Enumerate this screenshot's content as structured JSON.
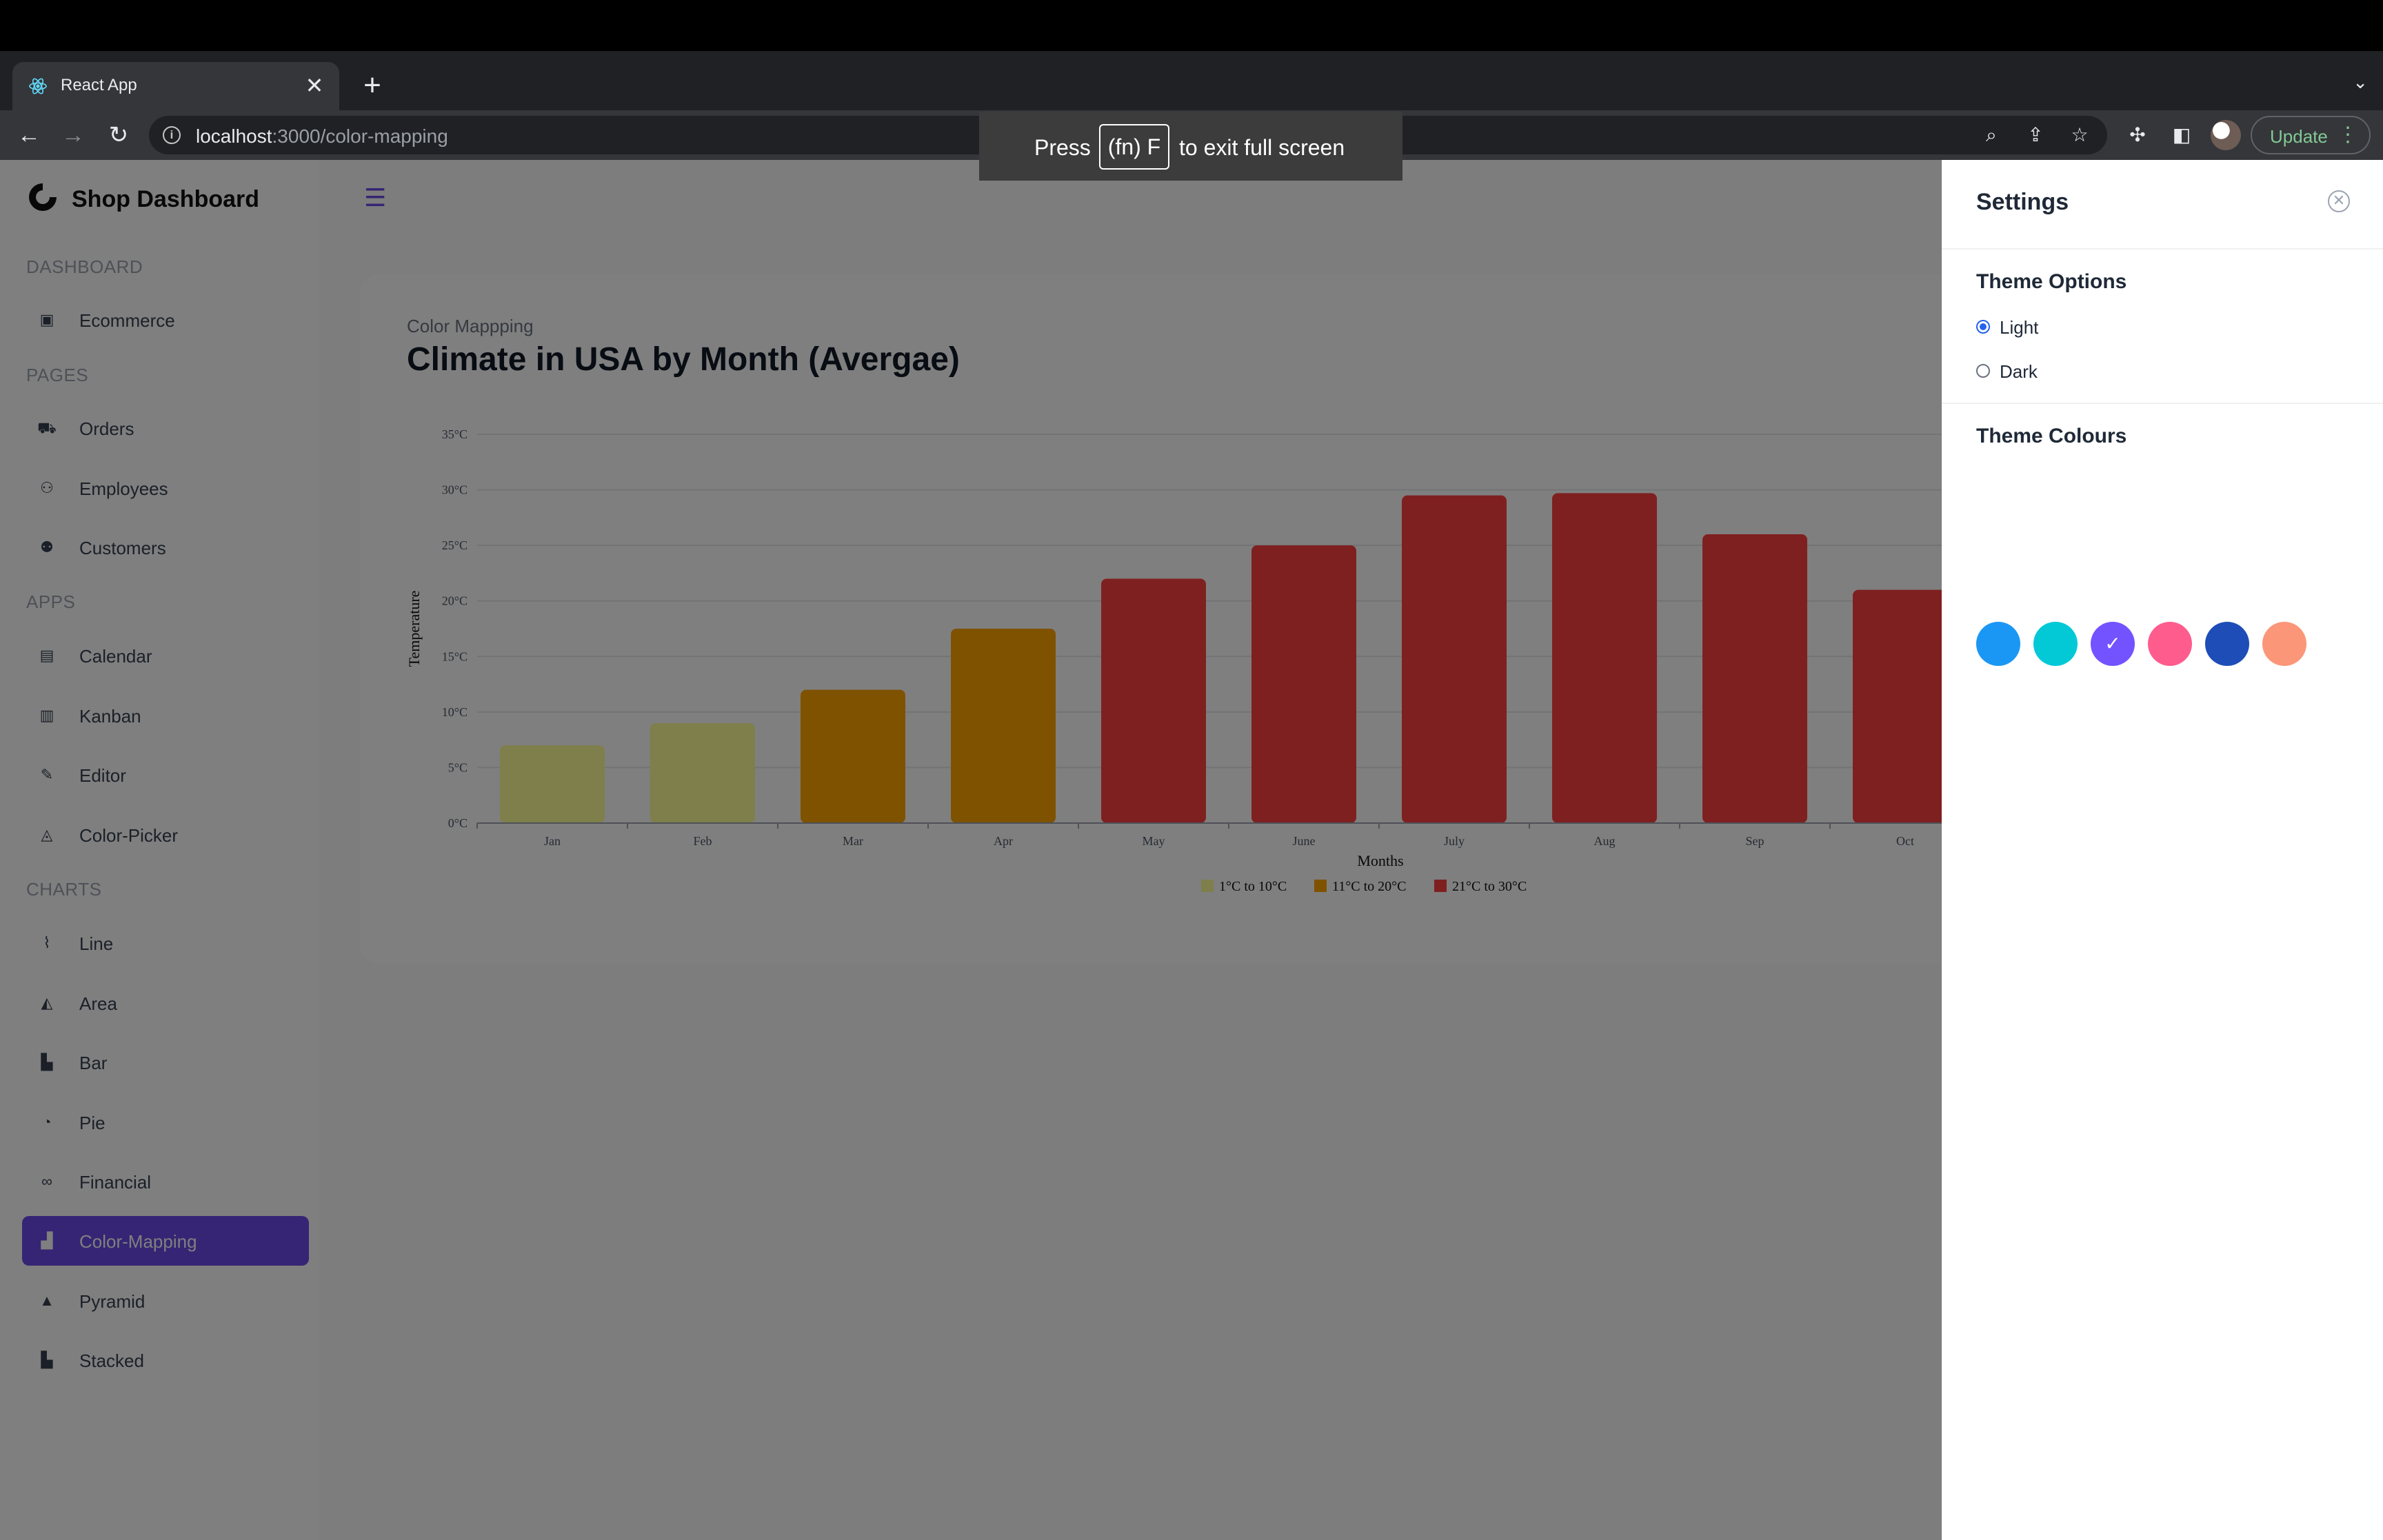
{
  "browser": {
    "tab_title": "React App",
    "tab_close": "✕",
    "new_tab": "+",
    "url_host": "localhost",
    "url_path": ":3000/color-mapping",
    "update_label": "Update",
    "update_menu": "⋮",
    "fullscreen_press": "Press",
    "fullscreen_key": "(fn) F",
    "fullscreen_rest": "to exit full screen"
  },
  "sidebar": {
    "brand": "Shop Dashboard",
    "sections": [
      {
        "title": "DASHBOARD",
        "items": [
          {
            "label": "Ecommerce",
            "icon": "bag-icon"
          }
        ]
      },
      {
        "title": "PAGES",
        "items": [
          {
            "label": "Orders",
            "icon": "cart-icon"
          },
          {
            "label": "Employees",
            "icon": "people-icon"
          },
          {
            "label": "Customers",
            "icon": "user-icon"
          }
        ]
      },
      {
        "title": "APPS",
        "items": [
          {
            "label": "Calendar",
            "icon": "calendar-icon"
          },
          {
            "label": "Kanban",
            "icon": "kanban-icon"
          },
          {
            "label": "Editor",
            "icon": "edit-icon"
          },
          {
            "label": "Color-Picker",
            "icon": "paint-icon"
          }
        ]
      },
      {
        "title": "CHARTS",
        "items": [
          {
            "label": "Line",
            "icon": "line-chart-icon"
          },
          {
            "label": "Area",
            "icon": "area-chart-icon"
          },
          {
            "label": "Bar",
            "icon": "bar-chart-icon"
          },
          {
            "label": "Pie",
            "icon": "pie-chart-icon"
          },
          {
            "label": "Financial",
            "icon": "financial-icon"
          },
          {
            "label": "Color-Mapping",
            "icon": "color-mapping-icon",
            "active": true
          },
          {
            "label": "Pyramid",
            "icon": "pyramid-icon"
          },
          {
            "label": "Stacked",
            "icon": "stacked-chart-icon"
          }
        ]
      }
    ]
  },
  "main": {
    "card_subtitle": "Color Mappping",
    "card_title": "Climate in USA by Month (Avergae)"
  },
  "settings": {
    "title": "Settings",
    "theme_options_heading": "Theme Options",
    "option_light": "Light",
    "option_dark": "Dark",
    "selected_mode": "Light",
    "theme_colours_heading": "Theme Colours",
    "colours": [
      "#1A97F5",
      "#03C9D7",
      "#7352FF",
      "#FF5C8E",
      "#1E4DB7",
      "#FB9678"
    ],
    "selected_colour": "#7352FF"
  },
  "chart_data": {
    "type": "bar",
    "title": "",
    "xlabel": "Months",
    "ylabel": "Temperature",
    "ylim": [
      0,
      35
    ],
    "y_ticks": [
      "0°C",
      "5°C",
      "10°C",
      "15°C",
      "20°C",
      "25°C",
      "30°C",
      "35°C"
    ],
    "categories": [
      "Jan",
      "Feb",
      "Mar",
      "Apr",
      "May",
      "June",
      "July",
      "Aug",
      "Sep",
      "Oct"
    ],
    "values": [
      7,
      9,
      12,
      17.5,
      22,
      25,
      29.5,
      29.7,
      26,
      21
    ],
    "ranges": [
      {
        "label": "1°C to 10°C",
        "from": 1,
        "to": 10,
        "color": "#FFFF99"
      },
      {
        "label": "11°C to 20°C",
        "from": 11,
        "to": 20,
        "color": "#FFA500"
      },
      {
        "label": "21°C to 30°C",
        "from": 21,
        "to": 30,
        "color": "#FF4040"
      }
    ],
    "legend_position": "bottom"
  }
}
